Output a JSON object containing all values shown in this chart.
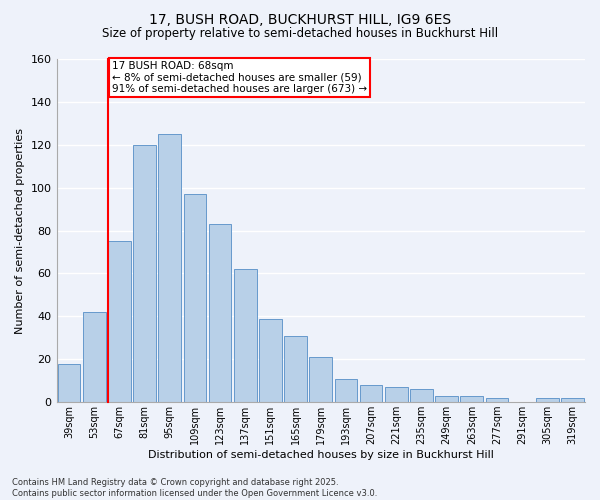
{
  "title1": "17, BUSH ROAD, BUCKHURST HILL, IG9 6ES",
  "title2": "Size of property relative to semi-detached houses in Buckhurst Hill",
  "xlabel": "Distribution of semi-detached houses by size in Buckhurst Hill",
  "ylabel": "Number of semi-detached properties",
  "categories": [
    "39sqm",
    "53sqm",
    "67sqm",
    "81sqm",
    "95sqm",
    "109sqm",
    "123sqm",
    "137sqm",
    "151sqm",
    "165sqm",
    "179sqm",
    "193sqm",
    "207sqm",
    "221sqm",
    "235sqm",
    "249sqm",
    "263sqm",
    "277sqm",
    "291sqm",
    "305sqm",
    "319sqm"
  ],
  "values": [
    18,
    42,
    75,
    120,
    125,
    97,
    83,
    62,
    39,
    31,
    21,
    11,
    8,
    7,
    6,
    3,
    3,
    2,
    0,
    2,
    2
  ],
  "bar_color": "#b8d0e8",
  "bar_edge_color": "#6699cc",
  "vline_index": 2,
  "vline_color": "red",
  "annotation_line1": "17 BUSH ROAD: 68sqm",
  "annotation_line2": "← 8% of semi-detached houses are smaller (59)",
  "annotation_line3": "91% of semi-detached houses are larger (673) →",
  "annotation_box_edge_color": "red",
  "background_color": "#eef2fa",
  "grid_color": "#ffffff",
  "ylim": [
    0,
    160
  ],
  "yticks": [
    0,
    20,
    40,
    60,
    80,
    100,
    120,
    140,
    160
  ],
  "footer": "Contains HM Land Registry data © Crown copyright and database right 2025.\nContains public sector information licensed under the Open Government Licence v3.0."
}
